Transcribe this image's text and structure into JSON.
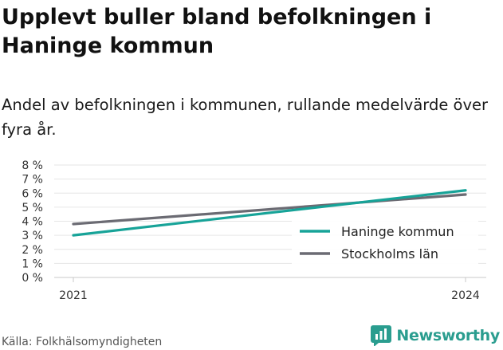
{
  "title": "Upplevt buller bland befolkningen i Haninge kommun",
  "subtitle": "Andel av befolkningen i kommunen, rullande medelvärde över fyra år.",
  "source": "Källa: Folkhälsomyndigheten",
  "brand": {
    "name": "Newsworthy",
    "icon": "bar-chart-icon",
    "color": "#2a9d8f"
  },
  "chart_data": {
    "type": "line",
    "x": [
      "2021",
      "2024"
    ],
    "ylim": [
      0,
      8
    ],
    "yticks": [
      0,
      1,
      2,
      3,
      4,
      5,
      6,
      7,
      8
    ],
    "ytick_labels": [
      "0 %",
      "1 %",
      "2 %",
      "3 %",
      "4 %",
      "5 %",
      "6 %",
      "7 %",
      "8 %"
    ],
    "grid": true,
    "legend_position": "bottom-right",
    "series": [
      {
        "name": "Haninge kommun",
        "values": [
          3.0,
          6.2
        ],
        "color": "#17a398"
      },
      {
        "name": "Stockholms län",
        "values": [
          3.8,
          5.9
        ],
        "color": "#6b6b73"
      }
    ]
  }
}
